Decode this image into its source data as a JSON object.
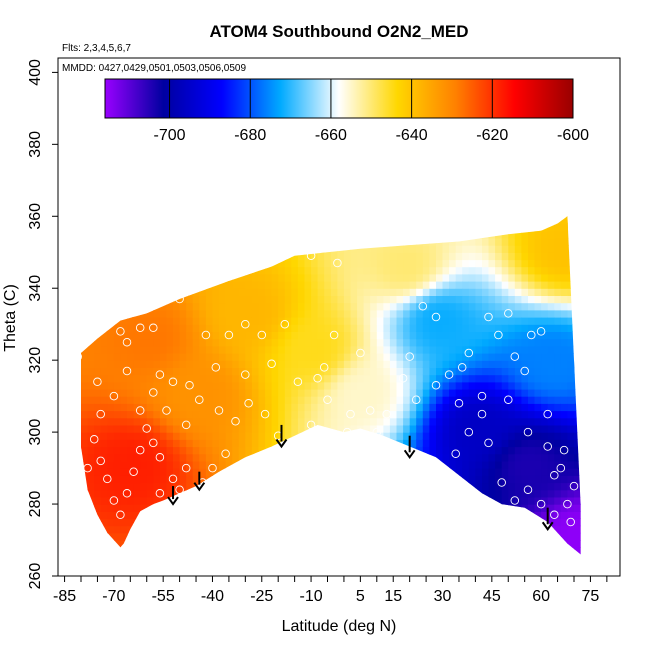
{
  "chart_data": {
    "type": "heatmap",
    "title": "ATOM4 Southbound O2N2_MED",
    "annotations": [
      "Flts: 2,3,4,5,6,7",
      "MMDD: 0427,0429,0501,0503,0506,0509"
    ],
    "xlabel": "Latitude (deg N)",
    "ylabel": "Theta (C)",
    "xlim": [
      -87,
      84
    ],
    "ylim": [
      260,
      404
    ],
    "x_ticks": [
      -85,
      -70,
      -55,
      -40,
      -25,
      -10,
      5,
      15,
      30,
      45,
      60,
      75
    ],
    "x_tick_labels": [
      "-85",
      "-70",
      "-55",
      "-40",
      "-25",
      "-10",
      "5",
      "15",
      "30",
      "45",
      "60",
      "75"
    ],
    "y_ticks": [
      260,
      280,
      300,
      320,
      340,
      360,
      380,
      400
    ],
    "y_tick_labels": [
      "260",
      "280",
      "300",
      "320",
      "340",
      "360",
      "380",
      "400"
    ],
    "colorbar": {
      "range": [
        -716,
        -600
      ],
      "ticks": [
        -700,
        -680,
        -660,
        -640,
        -620,
        -600
      ],
      "tick_labels": [
        "-700",
        "-680",
        "-660",
        "-640",
        "-620",
        "-600"
      ],
      "colors": [
        "#9900ff",
        "#0000a0",
        "#0000ff",
        "#00aaff",
        "#ffffff",
        "#ffd700",
        "#ff8000",
        "#ff0000",
        "#990000"
      ]
    },
    "boundary_top": [
      [
        -80,
        322
      ],
      [
        -75,
        326
      ],
      [
        -68,
        331
      ],
      [
        -60,
        333
      ],
      [
        -50,
        337
      ],
      [
        -35,
        342
      ],
      [
        -22,
        346
      ],
      [
        -15,
        349
      ],
      [
        -5,
        350
      ],
      [
        5,
        351
      ],
      [
        20,
        352
      ],
      [
        35,
        353
      ],
      [
        50,
        355
      ],
      [
        60,
        356
      ],
      [
        65,
        358
      ],
      [
        68,
        360
      ]
    ],
    "boundary_right": [
      [
        68,
        360
      ],
      [
        69,
        340
      ],
      [
        70,
        320
      ],
      [
        71,
        300
      ],
      [
        72,
        280
      ],
      [
        72,
        266
      ]
    ],
    "boundary_bottom": [
      [
        72,
        266
      ],
      [
        68,
        269
      ],
      [
        62,
        275
      ],
      [
        55,
        279
      ],
      [
        48,
        280
      ],
      [
        42,
        283
      ],
      [
        35,
        288
      ],
      [
        28,
        293
      ],
      [
        20,
        296
      ],
      [
        12,
        299
      ],
      [
        5,
        301
      ],
      [
        0,
        300
      ],
      [
        -8,
        302
      ],
      [
        -15,
        299
      ],
      [
        -22,
        296
      ],
      [
        -30,
        293
      ],
      [
        -38,
        289
      ],
      [
        -45,
        285
      ],
      [
        -50,
        283
      ],
      [
        -55,
        281
      ],
      [
        -58,
        280
      ],
      [
        -62,
        278
      ],
      [
        -65,
        273
      ],
      [
        -67,
        269
      ],
      [
        -68,
        268
      ]
    ],
    "boundary_left": [
      [
        -68,
        268
      ],
      [
        -72,
        272
      ],
      [
        -75,
        277
      ],
      [
        -78,
        284
      ],
      [
        -80,
        296
      ],
      [
        -80,
        322
      ]
    ],
    "field_nodes": [
      {
        "x": -65,
        "y": 290,
        "value": -618
      },
      {
        "x": -60,
        "y": 325,
        "value": -628
      },
      {
        "x": -45,
        "y": 310,
        "value": -632
      },
      {
        "x": -30,
        "y": 332,
        "value": -638
      },
      {
        "x": -10,
        "y": 322,
        "value": -645
      },
      {
        "x": 5,
        "y": 310,
        "value": -655
      },
      {
        "x": 18,
        "y": 345,
        "value": -650
      },
      {
        "x": 28,
        "y": 330,
        "value": -672
      },
      {
        "x": 40,
        "y": 300,
        "value": -696
      },
      {
        "x": 55,
        "y": 290,
        "value": -704
      },
      {
        "x": 62,
        "y": 318,
        "value": -676
      },
      {
        "x": 66,
        "y": 350,
        "value": -640
      },
      {
        "x": 70,
        "y": 270,
        "value": -715
      }
    ],
    "sample_points": [
      [
        -81,
        321
      ],
      [
        -75,
        314
      ],
      [
        -72,
        331
      ],
      [
        -68,
        328
      ],
      [
        -66,
        325
      ],
      [
        -62,
        329
      ],
      [
        -58,
        329
      ],
      [
        -56,
        316
      ],
      [
        -52,
        314
      ],
      [
        -50,
        337
      ],
      [
        -47,
        313
      ],
      [
        -42,
        327
      ],
      [
        -39,
        318
      ],
      [
        -35,
        327
      ],
      [
        -30,
        330
      ],
      [
        -25,
        327
      ],
      [
        -18,
        330
      ],
      [
        -10,
        349
      ],
      [
        -8,
        315
      ],
      [
        -3,
        327
      ],
      [
        -2,
        347
      ],
      [
        1,
        300
      ],
      [
        5,
        322
      ],
      [
        8,
        306
      ],
      [
        13,
        305
      ],
      [
        20,
        321
      ],
      [
        24,
        335
      ],
      [
        28,
        332
      ],
      [
        32,
        316
      ],
      [
        35,
        308
      ],
      [
        38,
        322
      ],
      [
        42,
        310
      ],
      [
        44,
        332
      ],
      [
        47,
        327
      ],
      [
        50,
        333
      ],
      [
        52,
        321
      ],
      [
        55,
        317
      ],
      [
        57,
        327
      ],
      [
        60,
        328
      ],
      [
        62,
        305
      ],
      [
        64,
        288
      ],
      [
        67,
        295
      ],
      [
        69,
        275
      ],
      [
        -76,
        298
      ],
      [
        -74,
        292
      ],
      [
        -72,
        287
      ],
      [
        -70,
        281
      ],
      [
        -68,
        277
      ],
      [
        -66,
        283
      ],
      [
        -64,
        289
      ],
      [
        -62,
        295
      ],
      [
        -60,
        301
      ],
      [
        -58,
        297
      ],
      [
        -56,
        293
      ],
      [
        -52,
        287
      ],
      [
        -50,
        284
      ],
      [
        -46,
        281
      ],
      [
        -43,
        286
      ],
      [
        -40,
        290
      ],
      [
        -36,
        294
      ],
      [
        -33,
        303
      ],
      [
        -29,
        308
      ],
      [
        -24,
        305
      ],
      [
        -20,
        299
      ],
      [
        -14,
        296
      ],
      [
        -10,
        302
      ],
      [
        -5,
        309
      ],
      [
        2,
        305
      ],
      [
        10,
        300
      ],
      [
        26,
        291
      ],
      [
        30,
        287
      ],
      [
        34,
        294
      ],
      [
        38,
        300
      ],
      [
        44,
        297
      ],
      [
        48,
        286
      ],
      [
        52,
        281
      ],
      [
        56,
        284
      ],
      [
        60,
        280
      ],
      [
        64,
        277
      ],
      [
        68,
        280
      ],
      [
        -74,
        305
      ],
      [
        -70,
        310
      ],
      [
        -66,
        317
      ],
      [
        -62,
        306
      ],
      [
        -58,
        311
      ],
      [
        -54,
        306
      ],
      [
        -48,
        302
      ],
      [
        -44,
        309
      ],
      [
        -38,
        306
      ],
      [
        -30,
        316
      ],
      [
        -22,
        319
      ],
      [
        -14,
        314
      ],
      [
        -6,
        318
      ],
      [
        18,
        315
      ],
      [
        22,
        309
      ],
      [
        28,
        313
      ],
      [
        36,
        318
      ],
      [
        42,
        305
      ],
      [
        50,
        309
      ],
      [
        56,
        300
      ],
      [
        62,
        296
      ],
      [
        66,
        290
      ],
      [
        70,
        285
      ],
      [
        -78,
        290
      ],
      [
        -64,
        272
      ],
      [
        -56,
        283
      ],
      [
        -48,
        290
      ]
    ],
    "arrows": [
      {
        "x": -52,
        "y_top": 285,
        "y_bottom": 280
      },
      {
        "x": -44,
        "y_top": 289,
        "y_bottom": 284
      },
      {
        "x": -19,
        "y_top": 302,
        "y_bottom": 296
      },
      {
        "x": 20,
        "y_top": 299,
        "y_bottom": 293
      },
      {
        "x": 62,
        "y_top": 279,
        "y_bottom": 273
      }
    ]
  }
}
